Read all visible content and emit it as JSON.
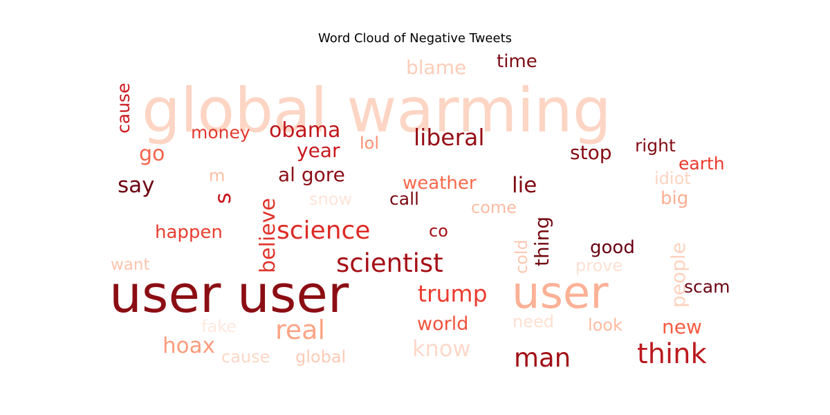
{
  "chart_data": {
    "type": "wordcloud",
    "title": "Word Cloud of Negative Tweets",
    "colormap": "Reds",
    "words": [
      {
        "text": "global warming",
        "size": 88,
        "color": "#fdd5c4"
      },
      {
        "text": "user user",
        "size": 74,
        "color": "#8b0e14"
      },
      {
        "text": "user",
        "size": 64,
        "color": "#fcb196"
      },
      {
        "text": "think",
        "size": 40,
        "color": "#bb1a1f"
      },
      {
        "text": "scientist",
        "size": 37,
        "color": "#a50f15"
      },
      {
        "text": "man",
        "size": 37,
        "color": "#a10e15"
      },
      {
        "text": "science",
        "size": 36,
        "color": "#dd2a25"
      },
      {
        "text": "real",
        "size": 38,
        "color": "#fca486"
      },
      {
        "text": "liberal",
        "size": 33,
        "color": "#960c14"
      },
      {
        "text": "trump",
        "size": 33,
        "color": "#eb3c2f"
      },
      {
        "text": "lie",
        "size": 31,
        "color": "#7f0810"
      },
      {
        "text": "say",
        "size": 31,
        "color": "#6c0412"
      },
      {
        "text": "obama",
        "size": 30,
        "color": "#c1161b"
      },
      {
        "text": "know",
        "size": 32,
        "color": "#fdd8ca"
      },
      {
        "text": "hoax",
        "size": 31,
        "color": "#fb9c7c"
      },
      {
        "text": "believe",
        "size": 30,
        "color": "#e0342b"
      },
      {
        "text": "al gore",
        "size": 28,
        "color": "#8c0d15"
      },
      {
        "text": "year",
        "size": 28,
        "color": "#c9181d"
      },
      {
        "text": "stop",
        "size": 28,
        "color": "#860a12"
      },
      {
        "text": "world",
        "size": 27,
        "color": "#f0533b"
      },
      {
        "text": "new",
        "size": 28,
        "color": "#f85c42"
      },
      {
        "text": "thing",
        "size": 28,
        "color": "#730812"
      },
      {
        "text": "blame",
        "size": 28,
        "color": "#fdcdb9"
      },
      {
        "text": "people",
        "size": 28,
        "color": "#fdd2bf"
      },
      {
        "text": "time",
        "size": 26,
        "color": "#7c0a12"
      },
      {
        "text": "good",
        "size": 26,
        "color": "#670010"
      },
      {
        "text": "happen",
        "size": 26,
        "color": "#e73e2f"
      },
      {
        "text": "weather",
        "size": 26,
        "color": "#f7684b"
      },
      {
        "text": "go",
        "size": 30,
        "color": "#f4634a"
      },
      {
        "text": "s",
        "size": 32,
        "color": "#c8171c"
      },
      {
        "text": "right",
        "size": 25,
        "color": "#830b13"
      },
      {
        "text": "earth",
        "size": 25,
        "color": "#ea3a2c"
      },
      {
        "text": "scam",
        "size": 25,
        "color": "#6a0312"
      },
      {
        "text": "call",
        "size": 25,
        "color": "#7b0811"
      },
      {
        "text": "money",
        "size": 25,
        "color": "#e2392c"
      },
      {
        "text": "cause",
        "size": 25,
        "color": "#cc191e"
      },
      {
        "text": "big",
        "size": 26,
        "color": "#fcae92"
      },
      {
        "text": "cold",
        "size": 24,
        "color": "#fdc7b2"
      },
      {
        "text": "co",
        "size": 24,
        "color": "#a20f16"
      },
      {
        "text": "lol",
        "size": 24,
        "color": "#fc8f6f"
      },
      {
        "text": "idiot",
        "size": 24,
        "color": "#fdd3c1"
      },
      {
        "text": "snow",
        "size": 24,
        "color": "#fee4d8"
      },
      {
        "text": "come",
        "size": 24,
        "color": "#fcbca4"
      },
      {
        "text": "prove",
        "size": 24,
        "color": "#fde0d3"
      },
      {
        "text": "need",
        "size": 24,
        "color": "#fee0d2"
      },
      {
        "text": "look",
        "size": 24,
        "color": "#fcbba1"
      },
      {
        "text": "want",
        "size": 23,
        "color": "#fcc4ad"
      },
      {
        "text": "fake",
        "size": 24,
        "color": "#fee9df"
      },
      {
        "text": "cause",
        "size": 24,
        "color": "#fdd7c5"
      },
      {
        "text": "global",
        "size": 24,
        "color": "#fdcab5"
      },
      {
        "text": "m",
        "size": 24,
        "color": "#fcbea5"
      }
    ]
  }
}
